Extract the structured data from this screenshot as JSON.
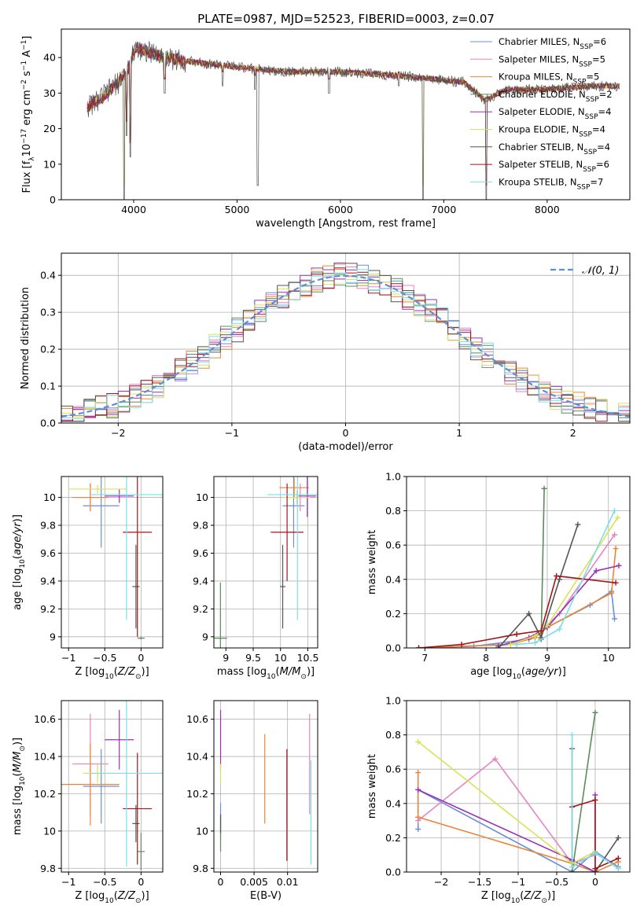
{
  "figure": {
    "title": "PLATE=0987, MJD=52523, FIBERID=0003, z=0.07"
  },
  "colors": {
    "axes": "#000000",
    "grid": "#b0b0b0",
    "Chabrier MILES": "#6a8fd8",
    "Salpeter MILES": "#e684c0",
    "Kroupa MILES": "#e9863a",
    "Chabrier ELODIE": "#5b8c5a",
    "Salpeter ELODIE": "#9b2fb8",
    "Kroupa ELODIE": "#d7e457",
    "Chabrier STELIB": "#555555",
    "Salpeter STELIB": "#a3141c",
    "Kroupa STELIB": "#7fdde6",
    "normal": "#5b8fd6"
  },
  "legend_spectrum": [
    "Chabrier MILES, N_SSP=6",
    "Salpeter MILES, N_SSP=5",
    "Kroupa MILES, N_SSP=5",
    "Chabrier ELODIE, N_SSP=2",
    "Salpeter ELODIE, N_SSP=4",
    "Kroupa ELODIE, N_SSP=4",
    "Chabrier STELIB, N_SSP=4",
    "Salpeter STELIB, N_SSP=6",
    "Kroupa STELIB, N_SSP=7"
  ],
  "legend_hist": "𝒩(0, 1)",
  "chart_data": [
    {
      "id": "spectrum",
      "type": "line",
      "xlabel": "wavelength [Angstrom, rest frame]",
      "ylabel": "Flux [f_λ 10^-17 erg cm^-2 s^-1 A^-1]",
      "xlim": [
        3300,
        8800
      ],
      "ylim": [
        0,
        48
      ],
      "xticks": [
        4000,
        5000,
        6000,
        7000,
        8000
      ],
      "yticks": [
        0,
        10,
        20,
        30,
        40
      ],
      "grid": false,
      "legend_position": "top-right",
      "continuum": [
        {
          "x": 3550,
          "y": 26
        },
        {
          "x": 3700,
          "y": 29
        },
        {
          "x": 3850,
          "y": 33
        },
        {
          "x": 3950,
          "y": 37
        },
        {
          "x": 4020,
          "y": 43
        },
        {
          "x": 4100,
          "y": 42
        },
        {
          "x": 4300,
          "y": 40
        },
        {
          "x": 4500,
          "y": 39
        },
        {
          "x": 4800,
          "y": 38
        },
        {
          "x": 5100,
          "y": 37
        },
        {
          "x": 5500,
          "y": 36
        },
        {
          "x": 6000,
          "y": 36
        },
        {
          "x": 6500,
          "y": 35
        },
        {
          "x": 6900,
          "y": 34
        },
        {
          "x": 7200,
          "y": 33
        },
        {
          "x": 7400,
          "y": 28
        },
        {
          "x": 7600,
          "y": 31
        },
        {
          "x": 8000,
          "y": 31
        },
        {
          "x": 8400,
          "y": 32
        },
        {
          "x": 8700,
          "y": 32
        }
      ],
      "absorption_features": [
        {
          "x": 3933,
          "y": 18
        },
        {
          "x": 3968,
          "y": 12
        },
        {
          "x": 4300,
          "y": 30
        },
        {
          "x": 4861,
          "y": 32
        },
        {
          "x": 5175,
          "y": 31
        },
        {
          "x": 5200,
          "y": 4
        },
        {
          "x": 5890,
          "y": 30
        },
        {
          "x": 6563,
          "y": 32
        },
        {
          "x": 6800,
          "y": 0
        },
        {
          "x": 3905,
          "y": 0
        },
        {
          "x": 7410,
          "y": 0
        }
      ]
    },
    {
      "id": "residuals",
      "type": "bar",
      "xlabel": "(data-model)/error",
      "ylabel": "Normed distribution",
      "xlim": [
        -2.5,
        2.5
      ],
      "ylim": [
        0,
        0.46
      ],
      "xticks": [
        -2,
        -1,
        0,
        1,
        2
      ],
      "yticks": [
        0.0,
        0.1,
        0.2,
        0.3,
        0.4
      ],
      "grid": true,
      "legend_position": "top-right",
      "bin_width": 0.1,
      "bin_start": -2.5
    },
    {
      "id": "age_vs_Z",
      "type": "scatter",
      "xlabel": "Z [log10(Z/Z☉)]",
      "ylabel": "age [log10(age/yr)]",
      "xlim": [
        -1.1,
        0.3
      ],
      "ylim": [
        8.92,
        10.15
      ],
      "xticks": [
        -1.0,
        -0.5,
        0.0
      ],
      "yticks": [
        9.0,
        9.2,
        9.4,
        9.6,
        9.8,
        10.0
      ],
      "grid": true,
      "points": [
        {
          "model": "Chabrier MILES",
          "x": -0.55,
          "y": 9.94,
          "xerr": 0.25,
          "yerr": 0.3
        },
        {
          "model": "Salpeter MILES",
          "x": -0.7,
          "y": 10.0,
          "xerr": 0.25,
          "yerr": 0.1
        },
        {
          "model": "Kroupa MILES",
          "x": -0.7,
          "y": 10.0,
          "xerr": 0.25,
          "yerr": 0.1
        },
        {
          "model": "Chabrier ELODIE",
          "x": 0.0,
          "y": 8.99,
          "xerr": 0.05,
          "yerr": 0.01
        },
        {
          "model": "Salpeter ELODIE",
          "x": -0.3,
          "y": 10.01,
          "xerr": 0.2,
          "yerr": 0.05
        },
        {
          "model": "Kroupa ELODIE",
          "x": -0.6,
          "y": 10.06,
          "xerr": 0.4,
          "yerr": 0.03
        },
        {
          "model": "Chabrier STELIB",
          "x": -0.07,
          "y": 9.36,
          "xerr": 0.05,
          "yerr": 0.3
        },
        {
          "model": "Salpeter STELIB",
          "x": -0.05,
          "y": 9.75,
          "xerr": 0.2,
          "yerr": 0.75
        },
        {
          "model": "Kroupa STELIB",
          "x": -0.2,
          "y": 10.02,
          "xerr": 0.5,
          "yerr": 0.9
        }
      ]
    },
    {
      "id": "age_vs_mass",
      "type": "scatter",
      "xlabel": "mass [log10(M/M☉)]",
      "ylabel": "",
      "xlim": [
        8.78,
        10.68
      ],
      "ylim": [
        8.92,
        10.15
      ],
      "xticks": [
        9.0,
        9.5,
        10.0,
        10.5
      ],
      "yticks": [
        9.0,
        9.2,
        9.4,
        9.6,
        9.8,
        10.0
      ],
      "grid": true,
      "points": [
        {
          "model": "Chabrier MILES",
          "x": 10.24,
          "y": 9.94,
          "xerr": 0.2,
          "yerr": 0.3
        },
        {
          "model": "Salpeter MILES",
          "x": 10.36,
          "y": 10.0,
          "xerr": 0.27,
          "yerr": 0.1
        },
        {
          "model": "Kroupa MILES",
          "x": 10.25,
          "y": 10.07,
          "xerr": 0.27,
          "yerr": 0.07
        },
        {
          "model": "Chabrier ELODIE",
          "x": 8.9,
          "y": 8.99,
          "xerr": 0.12,
          "yerr": 0.4
        },
        {
          "model": "Salpeter ELODIE",
          "x": 10.49,
          "y": 10.01,
          "xerr": 0.16,
          "yerr": 0.15
        },
        {
          "model": "Kroupa ELODIE",
          "x": 10.3,
          "y": 10.0,
          "xerr": 0.25,
          "yerr": 0.05
        },
        {
          "model": "Chabrier STELIB",
          "x": 10.04,
          "y": 9.36,
          "xerr": 0.05,
          "yerr": 0.3
        },
        {
          "model": "Salpeter STELIB",
          "x": 10.12,
          "y": 9.75,
          "xerr": 0.3,
          "yerr": 0.35
        },
        {
          "model": "Kroupa STELIB",
          "x": 10.31,
          "y": 10.02,
          "xerr": 0.55,
          "yerr": 0.9
        }
      ]
    },
    {
      "id": "mass_weight_vs_age",
      "type": "line",
      "xlabel": "age [log10(age/yr)]",
      "ylabel": "mass weight",
      "xlim": [
        6.7,
        10.35
      ],
      "ylim": [
        0,
        1.0
      ],
      "xticks": [
        7,
        8,
        9,
        10
      ],
      "yticks": [
        0.0,
        0.2,
        0.4,
        0.6,
        0.8,
        1.0
      ],
      "grid": true,
      "series": [
        {
          "model": "Chabrier MILES",
          "x": [
            6.9,
            7.8,
            8.7,
            9.0,
            9.7,
            10.05,
            10.1
          ],
          "y": [
            0.0,
            0.01,
            0.05,
            0.12,
            0.25,
            0.33,
            0.17
          ]
        },
        {
          "model": "Salpeter MILES",
          "x": [
            6.9,
            8.4,
            8.8,
            9.2,
            10.1
          ],
          "y": [
            0.0,
            0.02,
            0.07,
            0.2,
            0.66
          ]
        },
        {
          "model": "Kroupa MILES",
          "x": [
            6.9,
            8.4,
            8.8,
            9.0,
            10.05,
            10.12
          ],
          "y": [
            0.0,
            0.02,
            0.06,
            0.12,
            0.32,
            0.58
          ]
        },
        {
          "model": "Chabrier ELODIE",
          "x": [
            8.9,
            8.95
          ],
          "y": [
            0.05,
            0.93
          ]
        },
        {
          "model": "Salpeter ELODIE",
          "x": [
            8.2,
            8.7,
            9.0,
            9.8,
            10.17
          ],
          "y": [
            0.01,
            0.06,
            0.12,
            0.45,
            0.48
          ]
        },
        {
          "model": "Kroupa ELODIE",
          "x": [
            8.4,
            8.8,
            9.0,
            10.15
          ],
          "y": [
            0.02,
            0.07,
            0.13,
            0.76
          ]
        },
        {
          "model": "Chabrier STELIB",
          "x": [
            8.2,
            8.7,
            8.9,
            9.2,
            9.5
          ],
          "y": [
            0.0,
            0.2,
            0.06,
            0.4,
            0.72
          ]
        },
        {
          "model": "Salpeter STELIB",
          "x": [
            6.9,
            7.6,
            8.5,
            8.9,
            9.15,
            10.12
          ],
          "y": [
            0.0,
            0.02,
            0.08,
            0.1,
            0.42,
            0.38
          ]
        },
        {
          "model": "Kroupa STELIB",
          "x": [
            8.5,
            8.8,
            9.2,
            10.1
          ],
          "y": [
            0.02,
            0.03,
            0.11,
            0.8
          ]
        }
      ]
    },
    {
      "id": "mass_vs_Z",
      "type": "scatter",
      "xlabel": "Z [log10(Z/Z☉)]",
      "ylabel": "mass [log10(M/M☉)]",
      "xlim": [
        -1.1,
        0.3
      ],
      "ylim": [
        9.78,
        10.7
      ],
      "xticks": [
        -1.0,
        -0.5,
        0.0
      ],
      "yticks": [
        9.8,
        10.0,
        10.2,
        10.4,
        10.6
      ],
      "grid": true,
      "points": [
        {
          "model": "Chabrier MILES",
          "x": -0.55,
          "y": 10.24,
          "xerr": 0.25,
          "yerr": 0.2
        },
        {
          "model": "Salpeter MILES",
          "x": -0.7,
          "y": 10.36,
          "xerr": 0.25,
          "yerr": 0.27
        },
        {
          "model": "Kroupa MILES",
          "x": -0.7,
          "y": 10.25,
          "xerr": 0.4,
          "yerr": 0.22
        },
        {
          "model": "Chabrier ELODIE",
          "x": 0.0,
          "y": 9.89,
          "xerr": 0.05,
          "yerr": 0.1
        },
        {
          "model": "Salpeter ELODIE",
          "x": -0.3,
          "y": 10.49,
          "xerr": 0.2,
          "yerr": 0.16
        },
        {
          "model": "Kroupa ELODIE",
          "x": -0.6,
          "y": 10.31,
          "xerr": 0.2,
          "yerr": 0.05
        },
        {
          "model": "Chabrier STELIB",
          "x": -0.07,
          "y": 10.04,
          "xerr": 0.05,
          "yerr": 0.1
        },
        {
          "model": "Salpeter STELIB",
          "x": -0.05,
          "y": 10.12,
          "xerr": 0.2,
          "yerr": 0.3
        },
        {
          "model": "Kroupa STELIB",
          "x": -0.2,
          "y": 10.31,
          "xerr": 0.5,
          "yerr": 0.5
        }
      ]
    },
    {
      "id": "mass_vs_ebv",
      "type": "scatter",
      "xlabel": "E(B-V)",
      "ylabel": "",
      "xlim": [
        -0.001,
        0.0145
      ],
      "ylim": [
        9.78,
        10.7
      ],
      "xticks": [
        0.0,
        0.005,
        0.01
      ],
      "yticks": [
        9.8,
        10.0,
        10.2,
        10.4,
        10.6
      ],
      "grid": true,
      "points": [
        {
          "model": "Chabrier MILES",
          "x": 0.0,
          "y": 10.05,
          "xerr": 0,
          "yerr": 0.1
        },
        {
          "model": "Salpeter MILES",
          "x": 0.0133,
          "y": 10.36,
          "xerr": 0,
          "yerr": 0.27
        },
        {
          "model": "Kroupa MILES",
          "x": 0.0066,
          "y": 10.28,
          "xerr": 0,
          "yerr": 0.24
        },
        {
          "model": "Chabrier ELODIE",
          "x": 0.0,
          "y": 9.99,
          "xerr": 0,
          "yerr": 0.1
        },
        {
          "model": "Salpeter ELODIE",
          "x": 0.0,
          "y": 10.49,
          "xerr": 0,
          "yerr": 0.16
        },
        {
          "model": "Kroupa ELODIE",
          "x": 0.0,
          "y": 10.31,
          "xerr": 0,
          "yerr": 0.05
        },
        {
          "model": "Chabrier STELIB",
          "x": 0.0,
          "y": 10.04,
          "xerr": 0,
          "yerr": 0.05
        },
        {
          "model": "Salpeter STELIB",
          "x": 0.0099,
          "y": 10.14,
          "xerr": 0,
          "yerr": 0.3
        },
        {
          "model": "Kroupa STELIB",
          "x": 0.0135,
          "y": 10.1,
          "xerr": 0,
          "yerr": 0.28
        }
      ]
    },
    {
      "id": "mass_weight_vs_Z",
      "type": "line",
      "xlabel": "Z [log10(Z/Z☉)]",
      "ylabel": "mass weight",
      "xlim": [
        -2.45,
        0.45
      ],
      "ylim": [
        0,
        1.0
      ],
      "xticks": [
        -2.0,
        -1.5,
        -1.0,
        -0.5,
        0.0
      ],
      "yticks": [
        0.0,
        0.2,
        0.4,
        0.6,
        0.8,
        1.0
      ],
      "grid": true,
      "series": [
        {
          "model": "Chabrier MILES",
          "x": [
            -2.3,
            -2.3,
            -0.3,
            0.0,
            0.3
          ],
          "y": [
            0.25,
            0.48,
            0.0,
            0.12,
            0.03
          ]
        },
        {
          "model": "Salpeter MILES",
          "x": [
            -2.3,
            -1.3,
            -0.3,
            0.0
          ],
          "y": [
            0.3,
            0.66,
            0.05,
            0.1
          ]
        },
        {
          "model": "Kroupa MILES",
          "x": [
            -2.3,
            -2.3,
            -0.3,
            0.0,
            0.3
          ],
          "y": [
            0.58,
            0.32,
            0.05,
            0.0,
            0.06
          ]
        },
        {
          "model": "Chabrier ELODIE",
          "x": [
            -0.3,
            0.0
          ],
          "y": [
            0.0,
            0.93
          ]
        },
        {
          "model": "Salpeter ELODIE",
          "x": [
            -2.3,
            -0.3,
            0.0,
            0.0
          ],
          "y": [
            0.48,
            0.07,
            0.0,
            0.45
          ]
        },
        {
          "model": "Kroupa ELODIE",
          "x": [
            -2.3,
            -0.3,
            0.0
          ],
          "y": [
            0.76,
            0.05,
            0.12
          ]
        },
        {
          "model": "Chabrier STELIB",
          "x": [
            -0.3,
            -0.3,
            0.0,
            0.3
          ],
          "y": [
            0.72,
            0.0,
            0.0,
            0.2
          ]
        },
        {
          "model": "Salpeter STELIB",
          "x": [
            -0.3,
            0.0,
            0.0,
            0.3
          ],
          "y": [
            0.38,
            0.42,
            0.02,
            0.08
          ]
        },
        {
          "model": "Kroupa STELIB",
          "x": [
            -0.3,
            -0.3,
            0.0,
            0.3
          ],
          "y": [
            0.8,
            0.03,
            0.11,
            0.02
          ]
        }
      ]
    }
  ]
}
